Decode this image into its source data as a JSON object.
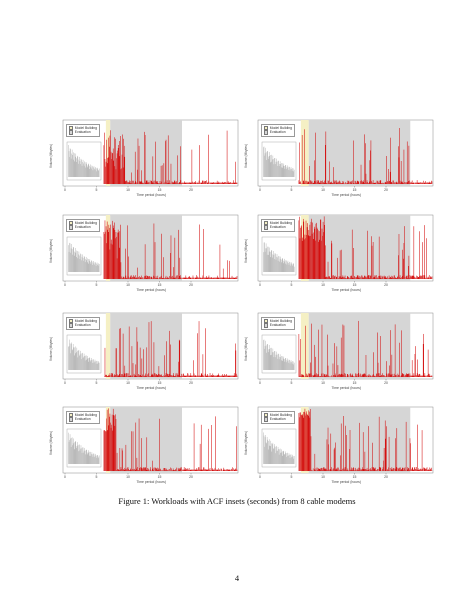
{
  "caption": "Figure 1: Workloads with ACF insets (seconds) from 8 cable modems",
  "page_number": "4",
  "colors": {
    "evaluation_bg": "#d6d6d6",
    "model_bg": "#f5f0c4",
    "series": "#d40f0f",
    "acf": "#9a9a9a"
  },
  "legend": {
    "model_building": "Model Building",
    "evaluation": "Evaluation"
  },
  "x_axis_label": "Time period (hours)",
  "x_ticks": [
    "0",
    "5",
    "10",
    "15",
    "20"
  ],
  "chart_data": [
    {
      "type": "area",
      "ylabel": "Volume (Mbytes)",
      "seed": 11,
      "model_end": 0.27,
      "eval_end": 0.68,
      "shape": "early-burst"
    },
    {
      "type": "area",
      "ylabel": "Volume (Mbytes)",
      "seed": 23,
      "model_end": 0.29,
      "eval_end": 0.87,
      "shape": "mid-burst"
    },
    {
      "type": "area",
      "ylabel": "Volume (Mbytes)",
      "seed": 37,
      "model_end": 0.27,
      "eval_end": 0.68,
      "shape": "dense-early"
    },
    {
      "type": "area",
      "ylabel": "Volume (Mbytes)",
      "seed": 41,
      "model_end": 0.29,
      "eval_end": 0.87,
      "shape": "dense-high"
    },
    {
      "type": "area",
      "ylabel": "Volume (Mbytes)",
      "seed": 53,
      "model_end": 0.27,
      "eval_end": 0.68,
      "shape": "medium"
    },
    {
      "type": "area",
      "ylabel": "Volume (Mbytes)",
      "seed": 67,
      "model_end": 0.29,
      "eval_end": 0.87,
      "shape": "medium"
    },
    {
      "type": "area",
      "ylabel": "Volume (Mbytes)",
      "seed": 71,
      "model_end": 0.27,
      "eval_end": 0.68,
      "shape": "full-block"
    },
    {
      "type": "area",
      "ylabel": "Volume (Mbytes)",
      "seed": 83,
      "model_end": 0.29,
      "eval_end": 0.87,
      "shape": "block-high"
    }
  ]
}
